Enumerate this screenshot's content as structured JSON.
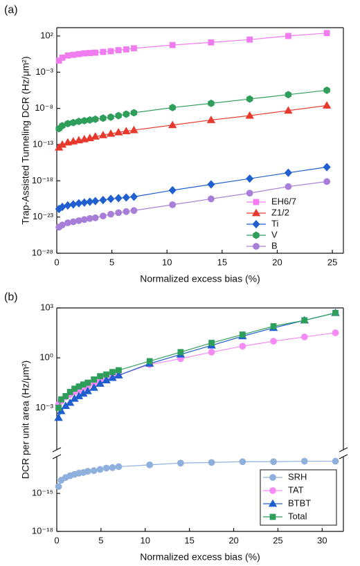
{
  "chart_data": [
    {
      "type": "line",
      "panel_label": "(a)",
      "x_label": "Normalized excess bias (%)",
      "y_label": "Trap-Assisted Tunneling DCR (Hz/μm²)",
      "x": [
        0.2,
        0.5,
        1,
        1.5,
        2,
        2.5,
        3,
        3.5,
        4.2,
        4.9,
        5.6,
        6.3,
        7,
        10.5,
        14,
        17.5,
        21,
        24.5
      ],
      "series": [
        {
          "name": "EH6/7",
          "color": "#f07cf0",
          "marker": "square",
          "values": [
            0.04,
            0.1,
            0.2,
            0.25,
            0.32,
            0.4,
            0.45,
            0.5,
            0.63,
            0.79,
            1.1,
            1.4,
            2,
            5.6,
            13,
            32,
            100,
            250
          ]
        },
        {
          "name": "Z1/2",
          "color": "#e8392d",
          "marker": "triangle",
          "values": [
            4e-14,
            1e-13,
            2e-13,
            2.8e-13,
            4e-13,
            5.6e-13,
            7.9e-13,
            1.3e-12,
            2e-12,
            3.2e-12,
            5e-12,
            7.1e-12,
            1e-11,
            5e-11,
            2.5e-10,
            1e-09,
            5e-09,
            2.5e-08
          ]
        },
        {
          "name": "Ti",
          "color": "#1f5fcf",
          "marker": "diamond",
          "values": [
            1.3e-22,
            2.5e-22,
            4e-22,
            5.6e-22,
            7.9e-22,
            1e-21,
            1.3e-21,
            1.6e-21,
            2.2e-21,
            3.2e-21,
            4e-21,
            5e-21,
            6.3e-21,
            5e-20,
            3.2e-19,
            2e-18,
            1.3e-17,
            7.9e-17
          ]
        },
        {
          "name": "V",
          "color": "#2e9e5a",
          "marker": "hexagon",
          "values": [
            1.6e-11,
            4e-11,
            7.9e-11,
            1.1e-10,
            1.6e-10,
            2e-10,
            2.5e-10,
            3.2e-10,
            4.5e-10,
            6.3e-10,
            1e-09,
            1.6e-09,
            2.5e-09,
            1.3e-08,
            5e-08,
            2e-07,
            7.9e-07,
            3.2e-06
          ]
        },
        {
          "name": "B",
          "color": "#a77fd8",
          "marker": "circle",
          "values": [
            4e-25,
            7.9e-25,
            1.6e-24,
            2.2e-24,
            3.2e-24,
            4.5e-24,
            6.3e-24,
            7.9e-24,
            1.4e-23,
            2.5e-23,
            4e-23,
            5.6e-23,
            7.9e-23,
            5e-22,
            3.2e-21,
            2e-20,
            1.6e-19,
            7.9e-19
          ]
        }
      ],
      "xlim": [
        0,
        26
      ],
      "xticks": [
        0,
        5,
        10,
        15,
        20,
        25
      ],
      "yscale": "log",
      "ylim": [
        1e-28,
        1400
      ],
      "yticks": [
        {
          "value": 100,
          "label": "10²"
        },
        {
          "value": 0.001,
          "label": "10⁻³"
        },
        {
          "value": 1e-08,
          "label": "10⁻⁸"
        },
        {
          "value": 1e-13,
          "label": "10⁻¹³"
        },
        {
          "value": 1e-18,
          "label": "10⁻¹⁸"
        },
        {
          "value": 1e-23,
          "label": "10⁻²³"
        },
        {
          "value": 1e-28,
          "label": "10⁻²⁸"
        }
      ],
      "legend": "lower right"
    },
    {
      "type": "line",
      "panel_label": "(b)",
      "x_label": "Normalized excess bias (%)",
      "y_label": "DCR per unit area (Hz/μm²)",
      "x": [
        0.2,
        0.5,
        1,
        1.5,
        2,
        2.5,
        3,
        3.5,
        4.2,
        4.9,
        5.6,
        6.3,
        7,
        10.5,
        14,
        17.5,
        21,
        24.5,
        28,
        31.5
      ],
      "series": [
        {
          "name": "SRH",
          "color": "#8fb0dc",
          "marker": "circle",
          "values": [
            3.5e-15,
            1.1e-14,
            1.8e-14,
            2.5e-14,
            3.2e-14,
            4e-14,
            4.5e-14,
            5.6e-14,
            6.3e-14,
            7.9e-14,
            1e-13,
            1.1e-13,
            1.3e-13,
            1.8e-13,
            2.5e-13,
            2.8e-13,
            3.2e-13,
            3.2e-13,
            3.5e-13,
            3.5e-13
          ]
        },
        {
          "name": "TAT",
          "color": "#f58cf5",
          "marker": "circle",
          "values": [
            0.0016,
            0.0025,
            0.0045,
            0.0063,
            0.0089,
            0.011,
            0.016,
            0.02,
            0.028,
            0.04,
            0.05,
            0.071,
            0.089,
            0.4,
            0.89,
            2.2,
            5,
            10,
            18,
            32
          ]
        },
        {
          "name": "BTBT",
          "color": "#1f5fcf",
          "marker": "triangle",
          "values": [
            0.00025,
            0.00063,
            0.0013,
            0.002,
            0.0035,
            0.005,
            0.0071,
            0.01,
            0.016,
            0.028,
            0.045,
            0.063,
            0.089,
            0.45,
            1.6,
            5.6,
            20,
            63,
            180,
            500
          ]
        },
        {
          "name": "Total",
          "color": "#2e9e5a",
          "marker": "square",
          "values": [
            0.001,
            0.0032,
            0.005,
            0.0089,
            0.014,
            0.019,
            0.025,
            0.032,
            0.05,
            0.079,
            0.1,
            0.14,
            0.18,
            0.63,
            2.2,
            7.9,
            25,
            79,
            180,
            500
          ]
        }
      ],
      "xlim": [
        0,
        32.4
      ],
      "xticks": [
        0,
        5,
        10,
        15,
        20,
        25,
        30
      ],
      "yscale": "log",
      "ylim": [
        1e-18,
        1000
      ],
      "ybreak": [
        8e-13,
        3e-06
      ],
      "yticks": [
        {
          "value": 1e-18,
          "label": "10⁻¹⁸"
        },
        {
          "value": 1e-15,
          "label": "10⁻¹⁵"
        },
        {
          "value": 0.001,
          "label": "10⁻³"
        },
        {
          "value": 1,
          "label": "10⁰"
        },
        {
          "value": 1000,
          "label": "10³"
        }
      ],
      "legend": "lower right"
    }
  ]
}
